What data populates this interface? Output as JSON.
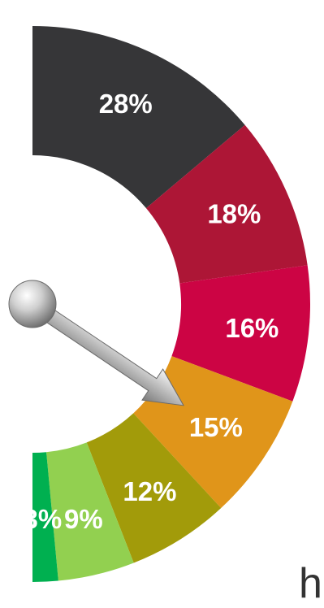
{
  "chart_data": {
    "type": "pie",
    "style": "semi-donut gauge with pointer",
    "segments": [
      {
        "label": "28%",
        "value": 28,
        "color": "#363638"
      },
      {
        "label": "18%",
        "value": 18,
        "color": "#ad1636"
      },
      {
        "label": "16%",
        "value": 16,
        "color": "#cc0444"
      },
      {
        "label": "15%",
        "value": 15,
        "color": "#e0951a"
      },
      {
        "label": "12%",
        "value": 12,
        "color": "#a29b0a"
      },
      {
        "label": "9%",
        "value": 9,
        "color": "#92d050"
      },
      {
        "label": "3%",
        "value": 3,
        "color": "#00b050"
      }
    ],
    "pointer_segment": "15%",
    "pointer_colors": {
      "shaft": "#b4b4b4",
      "knob": "#c8c8c8"
    }
  },
  "corner_text": "h"
}
